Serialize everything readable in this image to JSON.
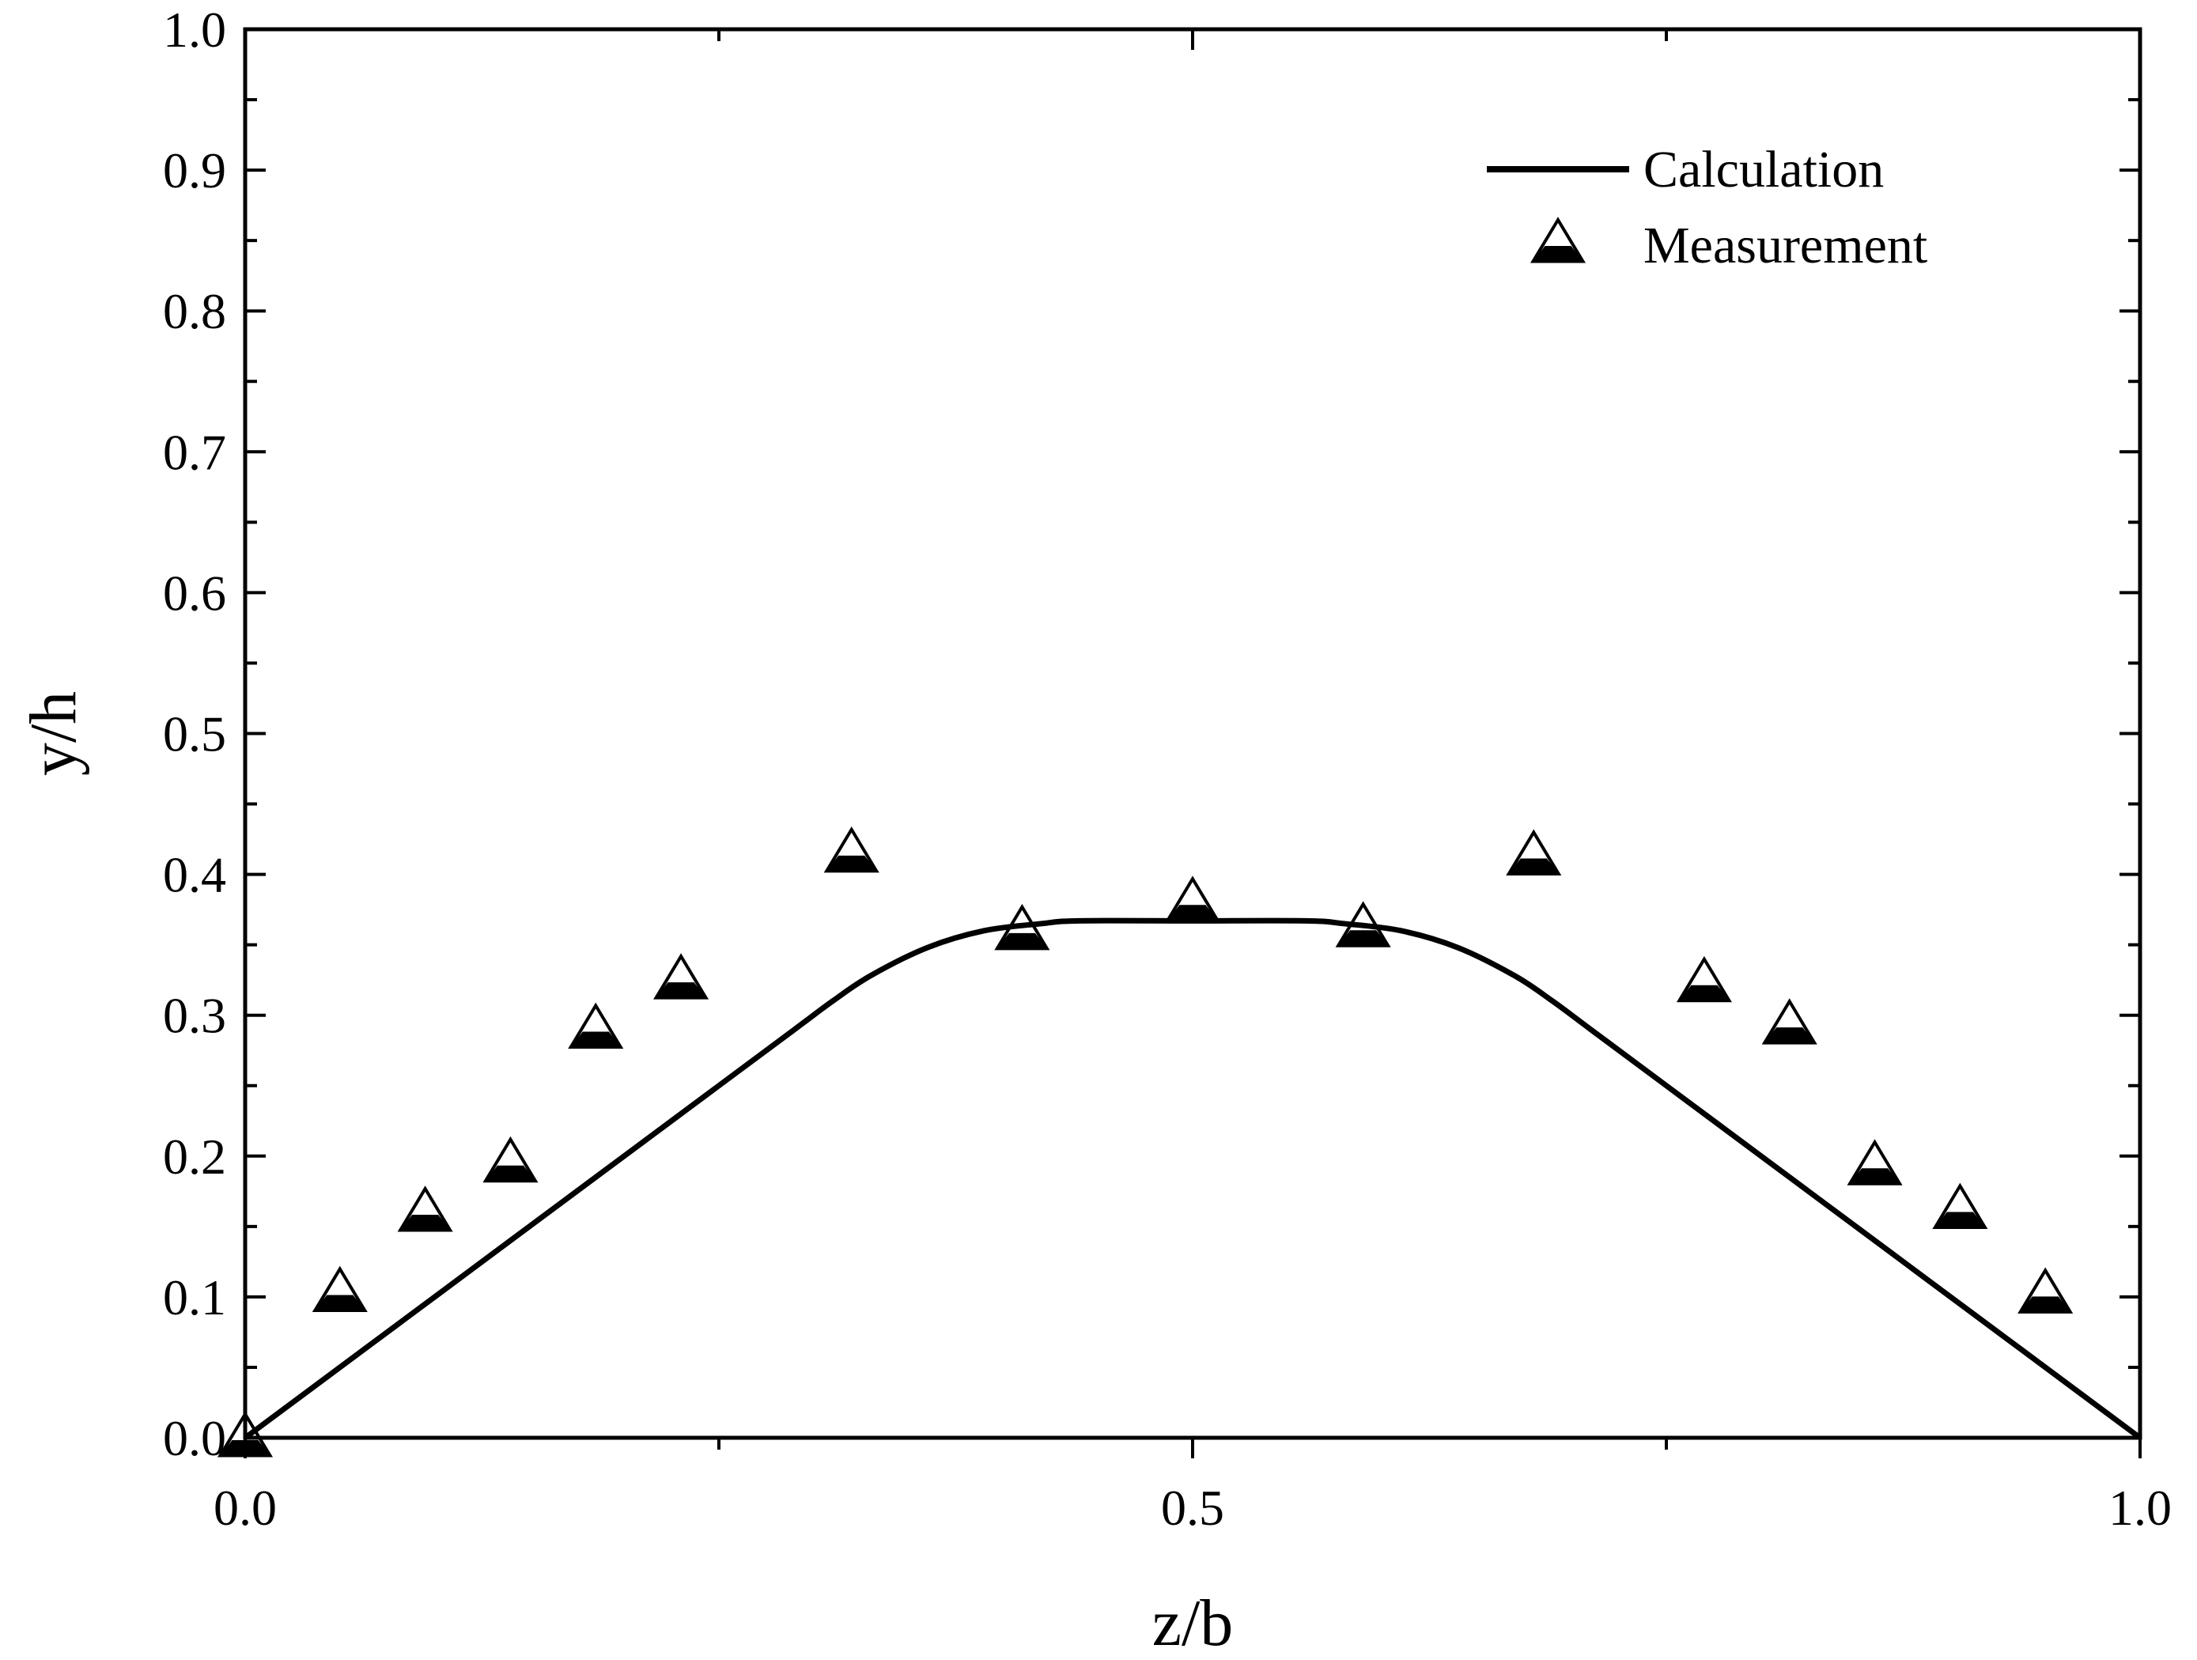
{
  "chart_data": {
    "type": "line",
    "title": "",
    "xlabel": "z/b",
    "ylabel": "y/h",
    "xlim": [
      0.0,
      1.0
    ],
    "ylim": [
      0.0,
      1.0
    ],
    "x_ticks": [
      0.0,
      0.5,
      1.0
    ],
    "x_tick_labels": [
      "0.0",
      "0.5",
      "1.0"
    ],
    "x_minor_step": 0.25,
    "y_ticks": [
      0.0,
      0.1,
      0.2,
      0.3,
      0.4,
      0.5,
      0.6,
      0.7,
      0.8,
      0.9,
      1.0
    ],
    "y_tick_labels": [
      "0.0",
      "0.1",
      "0.2",
      "0.3",
      "0.4",
      "0.5",
      "0.6",
      "0.7",
      "0.8",
      "0.9",
      "1.0"
    ],
    "y_minor_step": 0.05,
    "grid": false,
    "legend_position": "top-right",
    "series": [
      {
        "name": "Calculation",
        "style": "line",
        "color": "#000000",
        "x": [
          0.0,
          0.1,
          0.2,
          0.25,
          0.29,
          0.31,
          0.33,
          0.36,
          0.39,
          0.42,
          0.44,
          0.5,
          0.56,
          0.58,
          0.61,
          0.64,
          0.67,
          0.69,
          0.71,
          0.75,
          0.8,
          0.9,
          1.0
        ],
        "y": [
          0.0,
          0.1,
          0.2,
          0.25,
          0.29,
          0.31,
          0.328,
          0.348,
          0.36,
          0.365,
          0.367,
          0.367,
          0.367,
          0.365,
          0.36,
          0.348,
          0.328,
          0.31,
          0.29,
          0.25,
          0.2,
          0.1,
          0.0
        ]
      },
      {
        "name": "Measurement",
        "style": "marker",
        "marker": "triangle",
        "color": "#000000",
        "x": [
          0.0,
          0.05,
          0.095,
          0.14,
          0.185,
          0.23,
          0.32,
          0.41,
          0.5,
          0.59,
          0.68,
          0.77,
          0.815,
          0.86,
          0.905,
          0.95
        ],
        "y": [
          0.0,
          0.103,
          0.16,
          0.195,
          0.29,
          0.325,
          0.415,
          0.36,
          0.38,
          0.362,
          0.413,
          0.323,
          0.293,
          0.193,
          0.162,
          0.102
        ]
      }
    ]
  }
}
